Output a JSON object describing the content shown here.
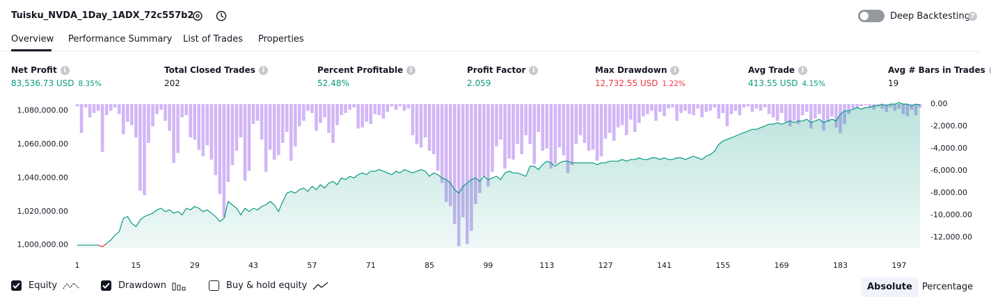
{
  "header": {
    "title": "Tuisku_NVDA_1Day_1ADX_72c557b2",
    "toggle": "Deep Backtesting"
  },
  "tabs": [
    "Overview",
    "Performance Summary",
    "List of Trades",
    "Properties"
  ],
  "metrics": [
    {
      "label": "Net Profit",
      "value": "83,536.73 USD",
      "percent": "8.35%",
      "color": "#089981"
    },
    {
      "label": "Total Closed Trades",
      "value": "202",
      "color": "#131722"
    },
    {
      "label": "Percent Profitable",
      "value": "52.48%",
      "color": "#089981"
    },
    {
      "label": "Profit Factor",
      "value": "2.059",
      "color": "#089981"
    },
    {
      "label": "Max Drawdown",
      "value": "12,732.55 USD",
      "percent": "1.22%",
      "color": "#f23645"
    },
    {
      "label": "Avg Trade",
      "value": "413.55 USD",
      "percent": "4.15%",
      "color": "#089981"
    },
    {
      "label": "Avg # Bars in Trades",
      "value": "19",
      "color": "#131722"
    }
  ],
  "chart_data": {
    "type": "equity",
    "xlim": [
      0.5,
      202.5
    ],
    "xticks": [
      1,
      15,
      29,
      43,
      57,
      71,
      85,
      99,
      113,
      127,
      141,
      155,
      169,
      183,
      197
    ],
    "ylim": [
      998000,
      1084000
    ],
    "yticks": [
      {
        "value": 1000000,
        "label": "1,000,000.00"
      },
      {
        "value": 1020000,
        "label": "1,020,000.00"
      },
      {
        "value": 1040000,
        "label": "1,040,000.00"
      },
      {
        "value": 1060000,
        "label": "1,060,000.00"
      },
      {
        "value": 1080000,
        "label": "1,080,000.00"
      }
    ],
    "y2lim": [
      -13000,
      0
    ],
    "y2ticks": [
      {
        "value": 0,
        "label": "0.00"
      },
      {
        "value": -2000,
        "label": "-2,000.00"
      },
      {
        "value": -4000,
        "label": "-4,000.00"
      },
      {
        "value": -6000,
        "label": "-6,000.00"
      },
      {
        "value": -8000,
        "label": "-8,000.00"
      },
      {
        "value": -10000,
        "label": "-10,000.00"
      },
      {
        "value": -12000,
        "label": "-12,000.00"
      }
    ],
    "series": [
      {
        "name": "Equity",
        "color": "#089981",
        "negative_color": "#f23645",
        "visible": true,
        "values": [
          1000000,
          1000000,
          1000000,
          1000000,
          1000000,
          1000000,
          999000,
          1001000,
          1003000,
          1006000,
          1008000,
          1016000,
          1017000,
          1013000,
          1011000,
          1015000,
          1017000,
          1018000,
          1019000,
          1021000,
          1022000,
          1020000,
          1021000,
          1019000,
          1020000,
          1018000,
          1022000,
          1021000,
          1023000,
          1022000,
          1020000,
          1021000,
          1019000,
          1017000,
          1014000,
          1016000,
          1026000,
          1024000,
          1022000,
          1018000,
          1022000,
          1020000,
          1022000,
          1021000,
          1023000,
          1024000,
          1026000,
          1024000,
          1020000,
          1026000,
          1031000,
          1032000,
          1031000,
          1033000,
          1034000,
          1032000,
          1035000,
          1033000,
          1036000,
          1034000,
          1037000,
          1038000,
          1036000,
          1040000,
          1039000,
          1041000,
          1040000,
          1042000,
          1043000,
          1042000,
          1044000,
          1044000,
          1045000,
          1044000,
          1043000,
          1042000,
          1044000,
          1043000,
          1045000,
          1044000,
          1043000,
          1044000,
          1045000,
          1044000,
          1041000,
          1043000,
          1042000,
          1040000,
          1039000,
          1037000,
          1033000,
          1031000,
          1035000,
          1037000,
          1039000,
          1040000,
          1038000,
          1041000,
          1039000,
          1040000,
          1041000,
          1039000,
          1043000,
          1044000,
          1043000,
          1043000,
          1042000,
          1041000,
          1047000,
          1047000,
          1045000,
          1048000,
          1050000,
          1049000,
          1047000,
          1049000,
          1050000,
          1050000,
          1049000,
          1049000,
          1049000,
          1049000,
          1049000,
          1049000,
          1048000,
          1049000,
          1049000,
          1050000,
          1050000,
          1050000,
          1051000,
          1050000,
          1051000,
          1051000,
          1052000,
          1051000,
          1051000,
          1052000,
          1052000,
          1051000,
          1052000,
          1051000,
          1051000,
          1052000,
          1052000,
          1051000,
          1052000,
          1053000,
          1052000,
          1051000,
          1053000,
          1054000,
          1056000,
          1060000,
          1062000,
          1063000,
          1064000,
          1065000,
          1066000,
          1067000,
          1068000,
          1069000,
          1069000,
          1070000,
          1071000,
          1072000,
          1072000,
          1073000,
          1072000,
          1073000,
          1074000,
          1073000,
          1074000,
          1074000,
          1075000,
          1073000,
          1074000,
          1075000,
          1073000,
          1074000,
          1075000,
          1074000,
          1078000,
          1080000,
          1080000,
          1081000,
          1082000,
          1081000,
          1082000,
          1082000,
          1083000,
          1083000,
          1084000,
          1083000,
          1084000,
          1084000,
          1085000,
          1084000,
          1084000,
          1083000,
          1084000,
          1083537
        ]
      },
      {
        "name": "Drawdown",
        "color": "#d2b6f6",
        "axis": "y2",
        "visible": true,
        "values": [
          -200,
          -2600,
          -300,
          -1200,
          -800,
          -600,
          -4300,
          -1000,
          -600,
          -300,
          -900,
          -2700,
          -1600,
          -1900,
          -3000,
          -7800,
          -8200,
          -3500,
          -2000,
          -900,
          -500,
          -1500,
          -2400,
          -5300,
          -4400,
          -1200,
          -1000,
          -3000,
          -3200,
          -4100,
          -4700,
          -3700,
          -5000,
          -6400,
          -8100,
          -10200,
          -7000,
          -5500,
          -4200,
          -3000,
          -6900,
          -6000,
          -1800,
          -1500,
          -3200,
          -6100,
          -4100,
          -5000,
          -4600,
          -3500,
          -2500,
          -5100,
          -3800,
          -2000,
          -1500,
          -600,
          -800,
          -2400,
          -1700,
          -1200,
          -2600,
          -3500,
          -1900,
          -1000,
          -800,
          -500,
          -300,
          -2200,
          -2100,
          -1600,
          -1800,
          -900,
          -1000,
          -1300,
          -700,
          -200,
          -500,
          -200,
          -600,
          -400,
          -2800,
          -3600,
          -3900,
          -3000,
          -4200,
          -4500,
          -6000,
          -7100,
          -8800,
          -9200,
          -10800,
          -12800,
          -10200,
          -12600,
          -11400,
          -9000,
          -8000,
          -6500,
          -7400,
          -6100,
          -3800,
          -3200,
          -5800,
          -4900,
          -5000,
          -3600,
          -4500,
          -2800,
          -3600,
          -5400,
          -2500,
          -4200,
          -4000,
          -5800,
          -5400,
          -3900,
          -4600,
          -6200,
          -5500,
          -3600,
          -2800,
          -3500,
          -4200,
          -4100,
          -5100,
          -4700,
          -3100,
          -2600,
          -3300,
          -2100,
          -1900,
          -2800,
          -1400,
          -2500,
          -1700,
          -1100,
          -900,
          -600,
          -1500,
          -700,
          -1100,
          -400,
          -300,
          -1500,
          -800,
          -600,
          -900,
          -1000,
          -400,
          -1200,
          -700,
          -600,
          -300,
          -1300,
          -800,
          -2000,
          -900,
          -600,
          -1000,
          -300,
          -200,
          -700,
          -400,
          -600,
          -300,
          -900,
          -1200,
          -1500,
          -800,
          -1600,
          -2000,
          -1500,
          -1800,
          -1000,
          -700,
          -2200,
          -1300,
          -900,
          -2400,
          -1600,
          -1100,
          -2100,
          -2600,
          -1800,
          -900,
          -400,
          -300,
          -200,
          -100,
          -300,
          -500,
          -200,
          -400,
          -700,
          -300,
          -600,
          -400,
          -900,
          -1100,
          -500,
          -1000,
          -300
        ]
      },
      {
        "name": "Buy & hold equity",
        "visible": false
      }
    ],
    "modes": [
      "Absolute",
      "Percentage"
    ],
    "active_mode": 0
  }
}
